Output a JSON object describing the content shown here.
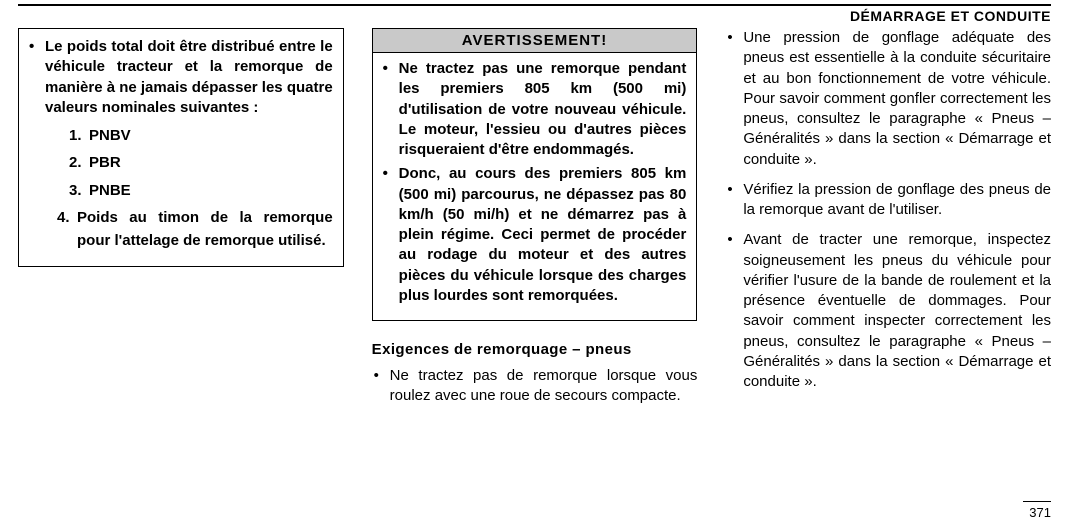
{
  "header": {
    "title": "DÉMARRAGE ET CONDUITE"
  },
  "pageNumber": "371",
  "col1": {
    "intro": "Le poids total doit être distribué entre le véhicule tracteur et la re­morque de manière à ne jamais dépasser les quatre valeurs nomi­nales suivantes :",
    "items": {
      "n1": "1.",
      "v1": "PNBV",
      "n2": "2.",
      "v2": "PBR",
      "n3": "3.",
      "v3": "PNBE",
      "n4": "4.",
      "v4": "Poids au timon de la remorque pour l'attelage de remorque utilisé."
    }
  },
  "col2": {
    "cautionTitle": "AVERTISSEMENT!",
    "c1": "Ne tractez pas une remorque pen­dant les premiers 805 km (500 mi) d'utilisation de votre nouveau véhi­cule. Le moteur, l'essieu ou d'au­tres pièces risqueraient d'être en­dommagés.",
    "c2": "Donc, au cours des premiers 805 km (500 mi) parcourus, ne dé­passez pas 80 km/h (50 mi/h) et ne démarrez pas à plein régime. Ceci permet de procéder au rodage du moteur et des autres pièces du vé­hicule lorsque des charges plus lourdes sont remorquées.",
    "subheading": "Exigences de remorquage – pneus",
    "b1": "Ne tractez pas de remorque lorsque vous roulez avec une roue de secours compacte."
  },
  "col3": {
    "b1": "Une pression de gonflage adéquate des pneus est essentielle à la conduite sécuritaire et au bon fonctionnement de votre véhicule. Pour savoir comment gonfler correctement les pneus, consul­tez le paragraphe « Pneus – Générali­tés » dans la section « Démarrage et conduite ».",
    "b2": "Vérifiez la pression de gonflage des pneus de la remorque avant de l'utiliser.",
    "b3": "Avant de tracter une remorque, ins­pectez soigneusement les pneus du véhicule pour vérifier l'usure de la bande de roulement et la présence éventuelle de dommages. Pour savoir comment inspecter correctement les pneus, consultez le paragraphe « Pneus – Généralités » dans la section « Démarrage et conduite »."
  }
}
